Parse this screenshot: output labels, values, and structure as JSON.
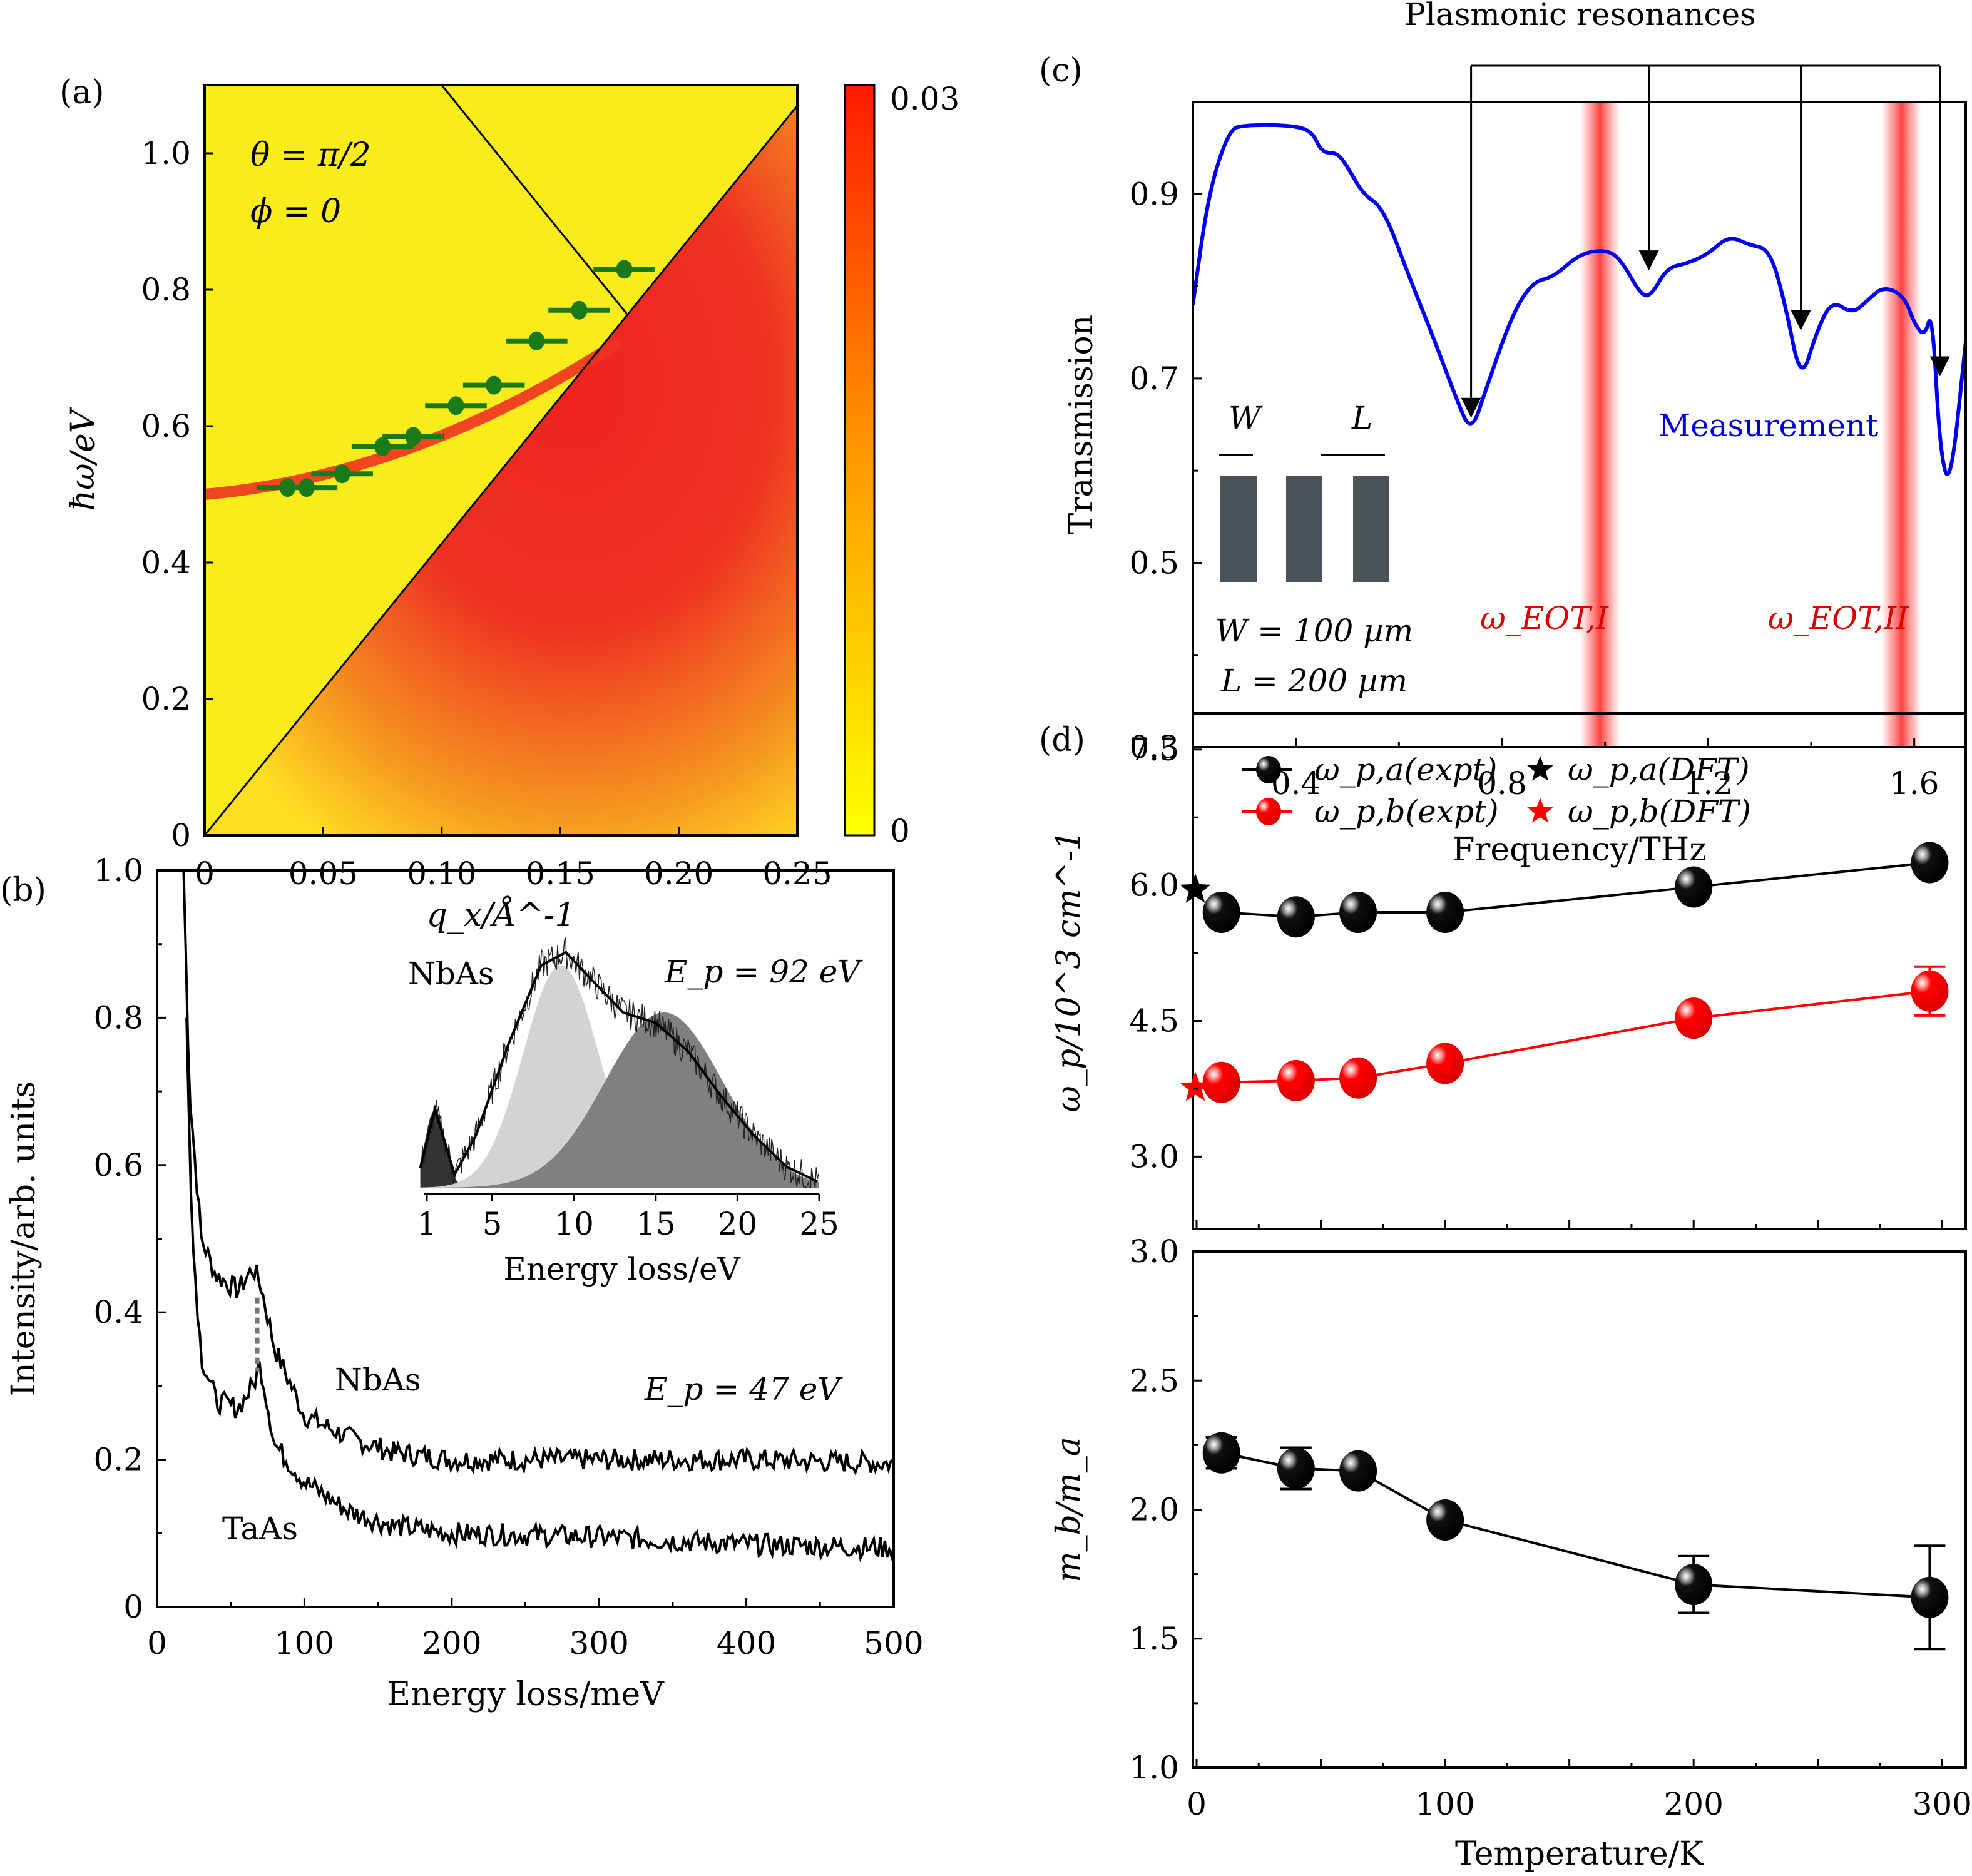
{
  "chart_data": [
    {
      "panel": "(a)",
      "type": "heatmap",
      "xlabel": "q_x/Å^-1",
      "ylabel": "ħω/eV",
      "xlim": [
        0,
        0.25
      ],
      "ylim": [
        0,
        1.1
      ],
      "xticks": [
        "0",
        "0.05",
        "0.10",
        "0.15",
        "0.20",
        "0.25"
      ],
      "yticks": [
        "0",
        "0.2",
        "0.4",
        "0.6",
        "0.8",
        "1.0"
      ],
      "annotations": [
        "θ = π/2",
        "ϕ = 0"
      ],
      "colorbar": {
        "min_label": "0",
        "max_label": "0.03",
        "colors": [
          "#ffff00",
          "#ff0000"
        ]
      },
      "lines": [
        {
          "name": "lower-boundary",
          "points": [
            [
              0,
              0
            ],
            [
              0.25,
              1.07
            ]
          ]
        },
        {
          "name": "upper-boundary",
          "points": [
            [
              0.1,
              1.1
            ],
            [
              0.178,
              0.765
            ]
          ]
        }
      ],
      "points": {
        "x": [
          0.035,
          0.043,
          0.058,
          0.075,
          0.088,
          0.106,
          0.122,
          0.14,
          0.158,
          0.177
        ],
        "y": [
          0.51,
          0.51,
          0.53,
          0.57,
          0.585,
          0.63,
          0.66,
          0.725,
          0.77,
          0.83
        ],
        "xerr": 0.013,
        "color": "#1a7a1a"
      }
    },
    {
      "panel": "(b)",
      "type": "line",
      "xlabel": "Energy loss/meV",
      "ylabel": "Intensity/arb. units",
      "xlim": [
        0,
        500
      ],
      "ylim": [
        0,
        1.0
      ],
      "xticks": [
        "0",
        "100",
        "200",
        "300",
        "400",
        "500"
      ],
      "yticks": [
        "0",
        "0.2",
        "0.4",
        "0.6",
        "0.8",
        "1.0"
      ],
      "series": [
        {
          "name": "NbAs",
          "x": [
            18,
            22,
            30,
            40,
            55,
            65,
            70,
            80,
            100,
            130,
            160,
            200,
            300,
            400,
            500
          ],
          "y": [
            1.0,
            0.7,
            0.5,
            0.45,
            0.43,
            0.46,
            0.44,
            0.35,
            0.26,
            0.23,
            0.21,
            0.2,
            0.2,
            0.2,
            0.195
          ]
        },
        {
          "name": "TaAs",
          "x": [
            20,
            24,
            30,
            40,
            55,
            65,
            70,
            80,
            100,
            130,
            160,
            200,
            300,
            400,
            500
          ],
          "y": [
            0.8,
            0.5,
            0.34,
            0.28,
            0.27,
            0.3,
            0.33,
            0.22,
            0.17,
            0.13,
            0.11,
            0.1,
            0.095,
            0.085,
            0.08
          ]
        }
      ],
      "annotations": [
        "NbAs",
        "TaAs",
        "E_p = 47 eV"
      ],
      "inset": {
        "xlabel": "Energy loss/eV",
        "xticks": [
          "1",
          "5",
          "10",
          "15",
          "20",
          "25"
        ],
        "xlim": [
          0.5,
          25
        ],
        "annotations": [
          "NbAs",
          "E_p = 92 eV"
        ],
        "fit": {
          "x": [
            0.5,
            1.5,
            2.7,
            4,
            6,
            8,
            9.5,
            11,
            13,
            15,
            17,
            19,
            21,
            23,
            25
          ],
          "y": [
            0.05,
            0.3,
            0.05,
            0.2,
            0.55,
            0.85,
            0.9,
            0.8,
            0.67,
            0.63,
            0.52,
            0.35,
            0.2,
            0.08,
            0.02
          ]
        },
        "components": [
          {
            "name": "peak-1",
            "center": 1.5,
            "height": 0.3,
            "width": 0.6,
            "color": "#333333"
          },
          {
            "name": "peak-2",
            "center": 9.2,
            "height": 0.85,
            "width": 2.3,
            "color": "#d3d3d3"
          },
          {
            "name": "peak-3",
            "center": 15.5,
            "height": 0.67,
            "width": 3.6,
            "color": "#808080"
          }
        ]
      }
    },
    {
      "panel": "(c)",
      "type": "line",
      "title": "Plasmonic resonances",
      "xlabel": "Frequency/THz",
      "ylabel": "Transmission",
      "xlim": [
        0.2,
        1.7
      ],
      "ylim": [
        0.3,
        1.0
      ],
      "xticks": [
        "0.4",
        "0.8",
        "1.2",
        "1.6"
      ],
      "yticks": [
        "0.3",
        "0.5",
        "0.7",
        "0.9"
      ],
      "series": [
        {
          "name": "Measurement",
          "color": "#0000ee",
          "x": [
            0.2,
            0.23,
            0.27,
            0.3,
            0.38,
            0.43,
            0.45,
            0.48,
            0.5,
            0.53,
            0.57,
            0.62,
            0.67,
            0.71,
            0.74,
            0.77,
            0.82,
            0.86,
            0.9,
            0.95,
            1.0,
            1.03,
            1.07,
            1.09,
            1.12,
            1.16,
            1.2,
            1.24,
            1.28,
            1.32,
            1.35,
            1.38,
            1.41,
            1.44,
            1.48,
            1.51,
            1.54,
            1.58,
            1.6,
            1.62,
            1.635,
            1.65,
            1.67,
            1.7
          ],
          "y": [
            0.78,
            0.9,
            0.97,
            0.975,
            0.975,
            0.97,
            0.945,
            0.945,
            0.93,
            0.9,
            0.885,
            0.81,
            0.74,
            0.68,
            0.64,
            0.69,
            0.77,
            0.805,
            0.81,
            0.835,
            0.84,
            0.83,
            0.79,
            0.79,
            0.82,
            0.825,
            0.835,
            0.855,
            0.845,
            0.84,
            0.78,
            0.695,
            0.75,
            0.785,
            0.77,
            0.785,
            0.8,
            0.79,
            0.76,
            0.745,
            0.775,
            0.62,
            0.58,
            0.74
          ]
        }
      ],
      "highlight_bands": [
        {
          "label": "ω_EOT,I",
          "x": 0.99
        },
        {
          "label": "ω_EOT,II",
          "x": 1.575
        }
      ],
      "arrows_x": [
        0.74,
        1.085,
        1.38,
        1.65
      ],
      "annotations": [
        "Measurement",
        "ω_EOT,I",
        "ω_EOT,II"
      ],
      "inset_labels": {
        "w": "W",
        "l": "L",
        "w_value": "W = 100 µm",
        "l_value": "L = 200 µm"
      }
    },
    {
      "panel": "(d)",
      "type": "scatter",
      "subplots": [
        {
          "ylabel": "ω_p/10^3 cm^-1",
          "ylim": [
            2.2,
            7.9
          ],
          "yticks": [
            "3.0",
            "4.5",
            "6.0",
            "7.5"
          ],
          "series": [
            {
              "name": "ω_p,a(expt)",
              "color": "#000000",
              "x": [
                10,
                40,
                65,
                100,
                200,
                295
              ],
              "y": [
                5.7,
                5.65,
                5.7,
                5.7,
                5.98,
                6.25
              ],
              "err": [
                0,
                0,
                0,
                0,
                0,
                0.05
              ]
            },
            {
              "name": "ω_p,b(expt)",
              "color": "#ff0000",
              "x": [
                10,
                40,
                65,
                100,
                200,
                295
              ],
              "y": [
                3.82,
                3.84,
                3.87,
                4.03,
                4.53,
                4.83
              ],
              "err": [
                0,
                0,
                0,
                0,
                0.1,
                0.27
              ]
            }
          ],
          "dft": [
            {
              "name": "ω_p,a(DFT)",
              "color": "#000000",
              "x": 0,
              "y": 5.95
            },
            {
              "name": "ω_p,b(DFT)",
              "color": "#ff0000",
              "x": 0,
              "y": 3.76
            }
          ],
          "legend": "top-left"
        },
        {
          "ylabel": "m_b/m_a",
          "xlabel": "Temperature/K",
          "ylim": [
            1.0,
            3.0
          ],
          "xlim": [
            0,
            310
          ],
          "yticks": [
            "1.0",
            "1.5",
            "2.0",
            "2.5",
            "3.0"
          ],
          "xticks": [
            "0",
            "100",
            "200",
            "300"
          ],
          "series": [
            {
              "name": "m_b/m_a",
              "color": "#000000",
              "x": [
                10,
                40,
                65,
                100,
                200,
                295
              ],
              "y": [
                2.22,
                2.16,
                2.15,
                1.96,
                1.71,
                1.66
              ],
              "err": [
                0.06,
                0.08,
                0,
                0,
                0.11,
                0.2
              ]
            }
          ]
        }
      ]
    }
  ]
}
